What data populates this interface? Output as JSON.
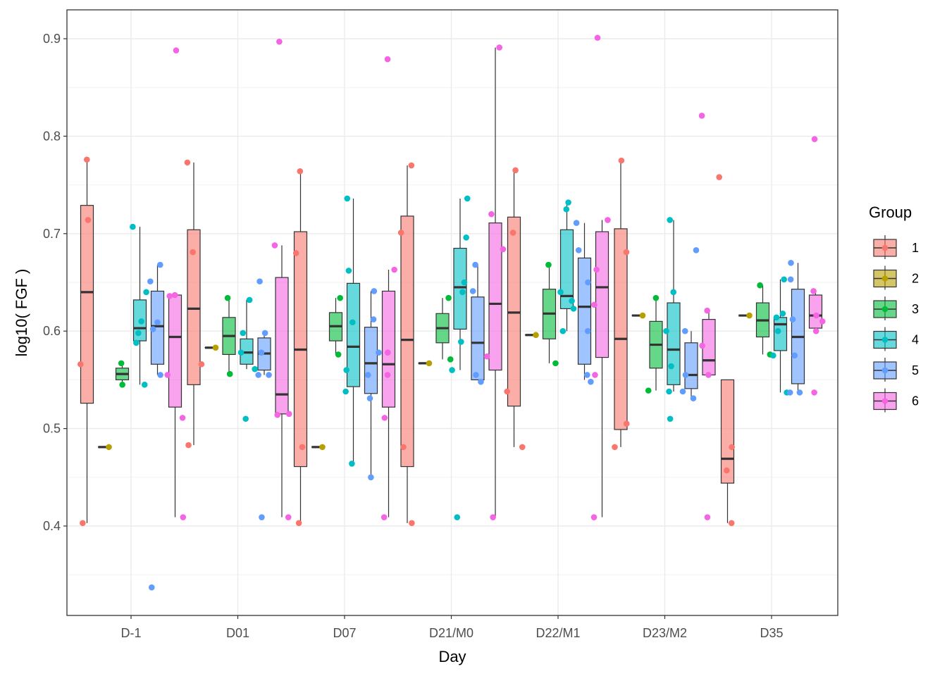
{
  "chart_data": {
    "type": "boxplot",
    "xlabel": "Day",
    "ylabel": "log10( FGF )",
    "ylim": [
      0.31,
      0.93
    ],
    "yticks": [
      "0.4",
      "0.5",
      "0.6",
      "0.7",
      "0.8",
      "0.9"
    ],
    "grid": true,
    "legend": {
      "title": "Group",
      "position": "right",
      "entries": [
        "1",
        "2",
        "3",
        "4",
        "5",
        "6"
      ]
    },
    "categories": [
      "D-1",
      "D01",
      "D07",
      "D21/M0",
      "D22/M1",
      "D23/M2",
      "D35"
    ],
    "colors": [
      "#F8766D",
      "#B79F00",
      "#00BA38",
      "#00BFC4",
      "#619CFF",
      "#F564E3"
    ],
    "groups": [
      "1",
      "2",
      "3",
      "4",
      "5",
      "6"
    ],
    "boxes": [
      {
        "day": "D-1",
        "group": "1",
        "whisker_low": 0.403,
        "q1": 0.526,
        "median": 0.64,
        "q3": 0.729,
        "whisker_high": 0.776
      },
      {
        "day": "D-1",
        "group": "2",
        "whisker_low": 0.481,
        "q1": 0.481,
        "median": 0.481,
        "q3": 0.481,
        "whisker_high": 0.481
      },
      {
        "day": "D-1",
        "group": "3",
        "whisker_low": 0.545,
        "q1": 0.55,
        "median": 0.556,
        "q3": 0.562,
        "whisker_high": 0.567
      },
      {
        "day": "D-1",
        "group": "4",
        "whisker_low": 0.545,
        "q1": 0.59,
        "median": 0.603,
        "q3": 0.632,
        "whisker_high": 0.707
      },
      {
        "day": "D-1",
        "group": "5",
        "whisker_low": 0.555,
        "q1": 0.566,
        "median": 0.605,
        "q3": 0.641,
        "whisker_high": 0.668
      },
      {
        "day": "D-1",
        "group": "6",
        "whisker_low": 0.409,
        "q1": 0.522,
        "median": 0.594,
        "q3": 0.637,
        "whisker_high": 0.637
      },
      {
        "day": "D01",
        "group": "1",
        "whisker_low": 0.483,
        "q1": 0.545,
        "median": 0.623,
        "q3": 0.704,
        "whisker_high": 0.773
      },
      {
        "day": "D01",
        "group": "2",
        "whisker_low": 0.583,
        "q1": 0.583,
        "median": 0.583,
        "q3": 0.583,
        "whisker_high": 0.583
      },
      {
        "day": "D01",
        "group": "3",
        "whisker_low": 0.556,
        "q1": 0.576,
        "median": 0.595,
        "q3": 0.614,
        "whisker_high": 0.634
      },
      {
        "day": "D01",
        "group": "4",
        "whisker_low": 0.561,
        "q1": 0.566,
        "median": 0.578,
        "q3": 0.592,
        "whisker_high": 0.632
      },
      {
        "day": "D01",
        "group": "5",
        "whisker_low": 0.555,
        "q1": 0.56,
        "median": 0.577,
        "q3": 0.593,
        "whisker_high": 0.598
      },
      {
        "day": "D01",
        "group": "6",
        "whisker_low": 0.409,
        "q1": 0.515,
        "median": 0.535,
        "q3": 0.655,
        "whisker_high": 0.688
      },
      {
        "day": "D07",
        "group": "1",
        "whisker_low": 0.403,
        "q1": 0.461,
        "median": 0.581,
        "q3": 0.702,
        "whisker_high": 0.764
      },
      {
        "day": "D07",
        "group": "2",
        "whisker_low": 0.481,
        "q1": 0.481,
        "median": 0.481,
        "q3": 0.481,
        "whisker_high": 0.481
      },
      {
        "day": "D07",
        "group": "3",
        "whisker_low": 0.576,
        "q1": 0.59,
        "median": 0.605,
        "q3": 0.619,
        "whisker_high": 0.634
      },
      {
        "day": "D07",
        "group": "4",
        "whisker_low": 0.464,
        "q1": 0.543,
        "median": 0.584,
        "q3": 0.649,
        "whisker_high": 0.736
      },
      {
        "day": "D07",
        "group": "5",
        "whisker_low": 0.45,
        "q1": 0.536,
        "median": 0.567,
        "q3": 0.604,
        "whisker_high": 0.641
      },
      {
        "day": "D07",
        "group": "6",
        "whisker_low": 0.409,
        "q1": 0.522,
        "median": 0.566,
        "q3": 0.641,
        "whisker_high": 0.663
      },
      {
        "day": "D21/M0",
        "group": "1",
        "whisker_low": 0.403,
        "q1": 0.461,
        "median": 0.591,
        "q3": 0.718,
        "whisker_high": 0.77
      },
      {
        "day": "D21/M0",
        "group": "2",
        "whisker_low": 0.567,
        "q1": 0.567,
        "median": 0.567,
        "q3": 0.567,
        "whisker_high": 0.567
      },
      {
        "day": "D21/M0",
        "group": "3",
        "whisker_low": 0.571,
        "q1": 0.588,
        "median": 0.603,
        "q3": 0.618,
        "whisker_high": 0.634
      },
      {
        "day": "D21/M0",
        "group": "4",
        "whisker_low": 0.56,
        "q1": 0.602,
        "median": 0.645,
        "q3": 0.685,
        "whisker_high": 0.736
      },
      {
        "day": "D21/M0",
        "group": "5",
        "whisker_low": 0.55,
        "q1": 0.55,
        "median": 0.588,
        "q3": 0.635,
        "whisker_high": 0.668
      },
      {
        "day": "D21/M0",
        "group": "6",
        "whisker_low": 0.409,
        "q1": 0.56,
        "median": 0.628,
        "q3": 0.711,
        "whisker_high": 0.891
      },
      {
        "day": "D22/M1",
        "group": "1",
        "whisker_low": 0.481,
        "q1": 0.523,
        "median": 0.619,
        "q3": 0.717,
        "whisker_high": 0.765
      },
      {
        "day": "D22/M1",
        "group": "2",
        "whisker_low": 0.596,
        "q1": 0.596,
        "median": 0.596,
        "q3": 0.596,
        "whisker_high": 0.596
      },
      {
        "day": "D22/M1",
        "group": "3",
        "whisker_low": 0.567,
        "q1": 0.592,
        "median": 0.618,
        "q3": 0.643,
        "whisker_high": 0.668
      },
      {
        "day": "D22/M1",
        "group": "4",
        "whisker_low": 0.6,
        "q1": 0.623,
        "median": 0.636,
        "q3": 0.704,
        "whisker_high": 0.732
      },
      {
        "day": "D22/M1",
        "group": "5",
        "whisker_low": 0.55,
        "q1": 0.566,
        "median": 0.625,
        "q3": 0.675,
        "whisker_high": 0.711
      },
      {
        "day": "D22/M1",
        "group": "6",
        "whisker_low": 0.409,
        "q1": 0.573,
        "median": 0.645,
        "q3": 0.702,
        "whisker_high": 0.714
      },
      {
        "day": "D23/M2",
        "group": "1",
        "whisker_low": 0.481,
        "q1": 0.499,
        "median": 0.592,
        "q3": 0.705,
        "whisker_high": 0.775
      },
      {
        "day": "D23/M2",
        "group": "2",
        "whisker_low": 0.616,
        "q1": 0.616,
        "median": 0.616,
        "q3": 0.616,
        "whisker_high": 0.616
      },
      {
        "day": "D23/M2",
        "group": "3",
        "whisker_low": 0.539,
        "q1": 0.562,
        "median": 0.586,
        "q3": 0.61,
        "whisker_high": 0.634
      },
      {
        "day": "D23/M2",
        "group": "4",
        "whisker_low": 0.538,
        "q1": 0.545,
        "median": 0.581,
        "q3": 0.629,
        "whisker_high": 0.714
      },
      {
        "day": "D23/M2",
        "group": "5",
        "whisker_low": 0.531,
        "q1": 0.541,
        "median": 0.555,
        "q3": 0.588,
        "whisker_high": 0.6
      },
      {
        "day": "D23/M2",
        "group": "6",
        "whisker_low": 0.555,
        "q1": 0.555,
        "median": 0.57,
        "q3": 0.612,
        "whisker_high": 0.621
      },
      {
        "day": "D35",
        "group": "1",
        "whisker_low": 0.403,
        "q1": 0.444,
        "median": 0.469,
        "q3": 0.55,
        "whisker_high": 0.55
      },
      {
        "day": "D35",
        "group": "2",
        "whisker_low": 0.616,
        "q1": 0.616,
        "median": 0.616,
        "q3": 0.616,
        "whisker_high": 0.616
      },
      {
        "day": "D35",
        "group": "3",
        "whisker_low": 0.576,
        "q1": 0.594,
        "median": 0.611,
        "q3": 0.629,
        "whisker_high": 0.647
      },
      {
        "day": "D35",
        "group": "4",
        "whisker_low": 0.537,
        "q1": 0.58,
        "median": 0.607,
        "q3": 0.614,
        "whisker_high": 0.653
      },
      {
        "day": "D35",
        "group": "5",
        "whisker_low": 0.537,
        "q1": 0.546,
        "median": 0.594,
        "q3": 0.643,
        "whisker_high": 0.67
      },
      {
        "day": "D35",
        "group": "6",
        "whisker_low": 0.6,
        "q1": 0.603,
        "median": 0.616,
        "q3": 0.637,
        "whisker_high": 0.641
      }
    ],
    "points": [
      {
        "day": "D-1",
        "group": "1",
        "values": [
          0.776,
          0.714,
          0.566,
          0.403
        ]
      },
      {
        "day": "D-1",
        "group": "2",
        "values": [
          0.481
        ]
      },
      {
        "day": "D-1",
        "group": "3",
        "values": [
          0.567,
          0.545
        ]
      },
      {
        "day": "D-1",
        "group": "4",
        "values": [
          0.707,
          0.64,
          0.61,
          0.598,
          0.588,
          0.545
        ]
      },
      {
        "day": "D-1",
        "group": "5",
        "values": [
          0.668,
          0.651,
          0.609,
          0.602,
          0.555,
          0.337
        ]
      },
      {
        "day": "D-1",
        "group": "6",
        "values": [
          0.888,
          0.637,
          0.636,
          0.555,
          0.511,
          0.409
        ]
      },
      {
        "day": "D01",
        "group": "1",
        "values": [
          0.773,
          0.681,
          0.566,
          0.483
        ]
      },
      {
        "day": "D01",
        "group": "2",
        "values": [
          0.583
        ]
      },
      {
        "day": "D01",
        "group": "3",
        "values": [
          0.634,
          0.556
        ]
      },
      {
        "day": "D01",
        "group": "4",
        "values": [
          0.632,
          0.598,
          0.578,
          0.561,
          0.51
        ]
      },
      {
        "day": "D01",
        "group": "5",
        "values": [
          0.651,
          0.598,
          0.578,
          0.555,
          0.555,
          0.409
        ]
      },
      {
        "day": "D01",
        "group": "6",
        "values": [
          0.897,
          0.688,
          0.515,
          0.514,
          0.409
        ]
      },
      {
        "day": "D07",
        "group": "1",
        "values": [
          0.764,
          0.68,
          0.481,
          0.403
        ]
      },
      {
        "day": "D07",
        "group": "2",
        "values": [
          0.481
        ]
      },
      {
        "day": "D07",
        "group": "3",
        "values": [
          0.634,
          0.576
        ]
      },
      {
        "day": "D07",
        "group": "4",
        "values": [
          0.736,
          0.662,
          0.609,
          0.56,
          0.538,
          0.464
        ]
      },
      {
        "day": "D07",
        "group": "5",
        "values": [
          0.641,
          0.612,
          0.578,
          0.555,
          0.531,
          0.45
        ]
      },
      {
        "day": "D07",
        "group": "6",
        "values": [
          0.879,
          0.663,
          0.578,
          0.555,
          0.511,
          0.409
        ]
      },
      {
        "day": "D21/M0",
        "group": "1",
        "values": [
          0.77,
          0.701,
          0.481,
          0.403
        ]
      },
      {
        "day": "D21/M0",
        "group": "2",
        "values": [
          0.567
        ]
      },
      {
        "day": "D21/M0",
        "group": "3",
        "values": [
          0.634,
          0.571
        ]
      },
      {
        "day": "D21/M0",
        "group": "4",
        "values": [
          0.736,
          0.696,
          0.65,
          0.64,
          0.589,
          0.56,
          0.409
        ]
      },
      {
        "day": "D21/M0",
        "group": "5",
        "values": [
          0.668,
          0.641,
          0.555,
          0.548
        ]
      },
      {
        "day": "D21/M0",
        "group": "6",
        "values": [
          0.891,
          0.72,
          0.684,
          0.574,
          0.409
        ]
      },
      {
        "day": "D22/M1",
        "group": "1",
        "values": [
          0.765,
          0.701,
          0.538,
          0.481
        ]
      },
      {
        "day": "D22/M1",
        "group": "2",
        "values": [
          0.596
        ]
      },
      {
        "day": "D22/M1",
        "group": "3",
        "values": [
          0.668,
          0.567
        ]
      },
      {
        "day": "D22/M1",
        "group": "4",
        "values": [
          0.732,
          0.725,
          0.64,
          0.631,
          0.623,
          0.6
        ]
      },
      {
        "day": "D22/M1",
        "group": "5",
        "values": [
          0.711,
          0.683,
          0.65,
          0.6,
          0.555,
          0.548
        ]
      },
      {
        "day": "D22/M1",
        "group": "6",
        "values": [
          0.901,
          0.714,
          0.663,
          0.627,
          0.555,
          0.409
        ]
      },
      {
        "day": "D23/M2",
        "group": "1",
        "values": [
          0.775,
          0.681,
          0.505,
          0.481
        ]
      },
      {
        "day": "D23/M2",
        "group": "2",
        "values": [
          0.616
        ]
      },
      {
        "day": "D23/M2",
        "group": "3",
        "values": [
          0.634,
          0.539
        ]
      },
      {
        "day": "D23/M2",
        "group": "4",
        "values": [
          0.714,
          0.64,
          0.6,
          0.564,
          0.538,
          0.51
        ]
      },
      {
        "day": "D23/M2",
        "group": "5",
        "values": [
          0.683,
          0.6,
          0.555,
          0.538,
          0.531
        ]
      },
      {
        "day": "D23/M2",
        "group": "6",
        "values": [
          0.821,
          0.621,
          0.585,
          0.555,
          0.409
        ]
      },
      {
        "day": "D35",
        "group": "1",
        "values": [
          0.758,
          0.481,
          0.457,
          0.403
        ]
      },
      {
        "day": "D35",
        "group": "2",
        "values": [
          0.616
        ]
      },
      {
        "day": "D35",
        "group": "3",
        "values": [
          0.647,
          0.576
        ]
      },
      {
        "day": "D35",
        "group": "4",
        "values": [
          0.653,
          0.618,
          0.614,
          0.6,
          0.575,
          0.537
        ]
      },
      {
        "day": "D35",
        "group": "5",
        "values": [
          0.67,
          0.653,
          0.612,
          0.575,
          0.537,
          0.537
        ]
      },
      {
        "day": "D35",
        "group": "6",
        "values": [
          0.797,
          0.641,
          0.616,
          0.61,
          0.6,
          0.537
        ]
      }
    ]
  }
}
